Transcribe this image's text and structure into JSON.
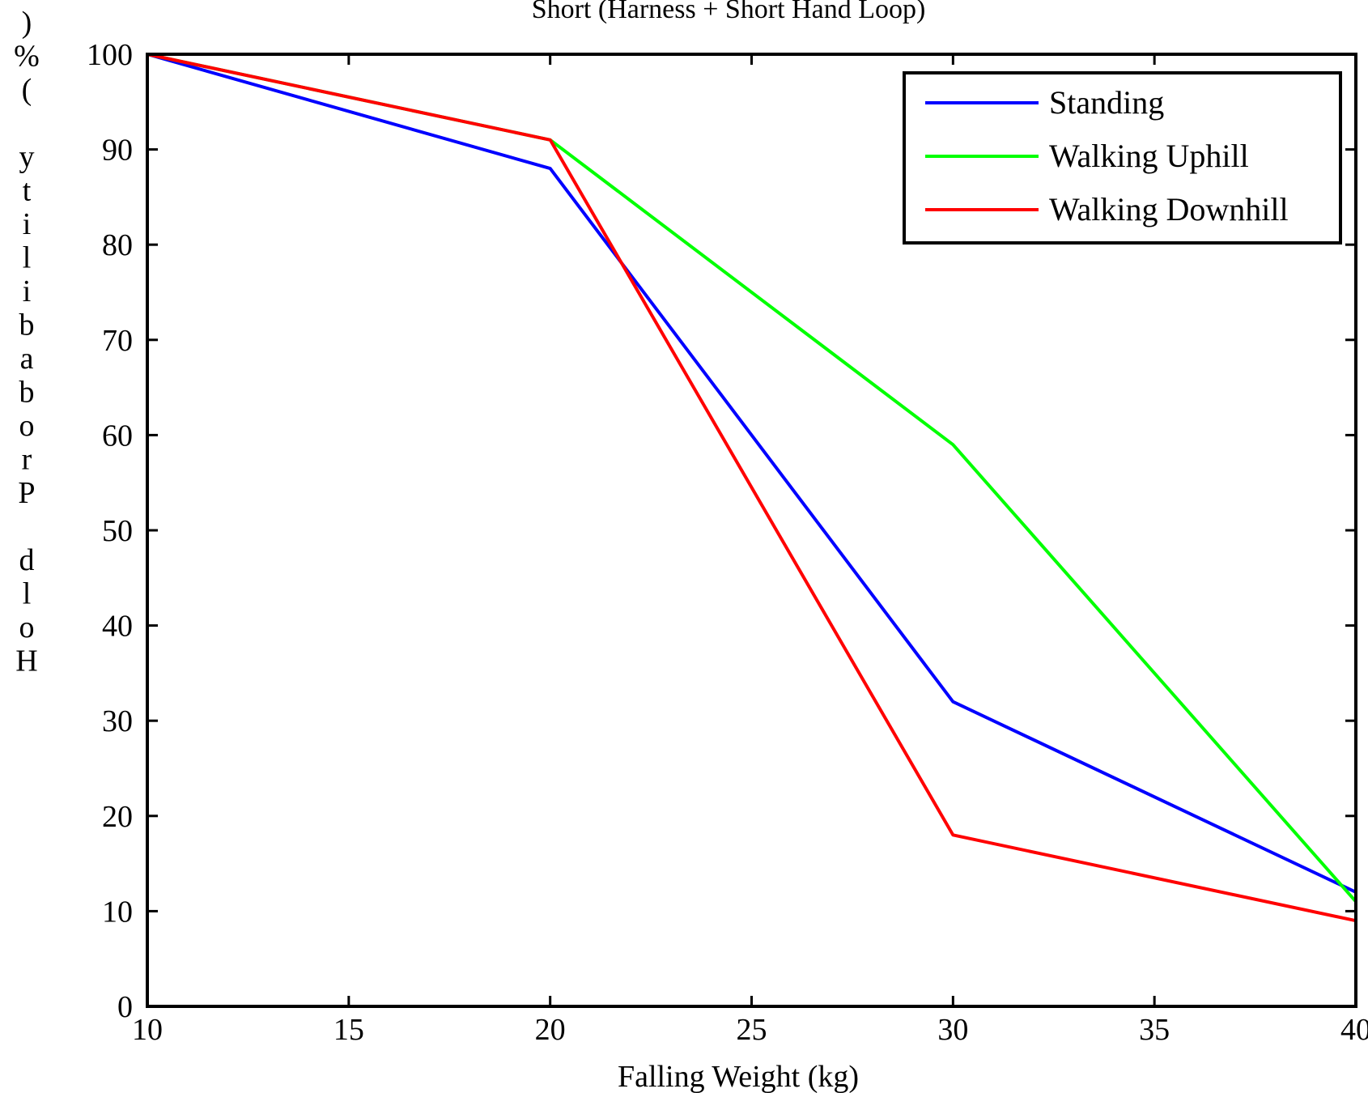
{
  "chart_data": {
    "type": "line",
    "title": "Short (Harness + Short Hand Loop)",
    "xlabel": "Falling Weight (kg)",
    "ylabel": "Hold Probability (%)",
    "xlim": [
      10,
      40
    ],
    "ylim": [
      0,
      100
    ],
    "x_ticks": [
      "10",
      "15",
      "20",
      "25",
      "30",
      "35",
      "40"
    ],
    "y_ticks": [
      "0",
      "10",
      "20",
      "30",
      "40",
      "50",
      "60",
      "70",
      "80",
      "90",
      "100"
    ],
    "grid": false,
    "legend_position": "top-right",
    "series": [
      {
        "name": "Standing",
        "color": "#0000ff",
        "x": [
          10,
          20,
          30,
          40
        ],
        "y": [
          100,
          88,
          32,
          12
        ]
      },
      {
        "name": "Walking Uphill",
        "color": "#00ff00",
        "x": [
          10,
          20,
          30,
          40
        ],
        "y": [
          100,
          91,
          59,
          11
        ]
      },
      {
        "name": "Walking Downhill",
        "color": "#ff0000",
        "x": [
          10,
          20,
          30,
          40
        ],
        "y": [
          100,
          91,
          18,
          9
        ]
      }
    ]
  }
}
